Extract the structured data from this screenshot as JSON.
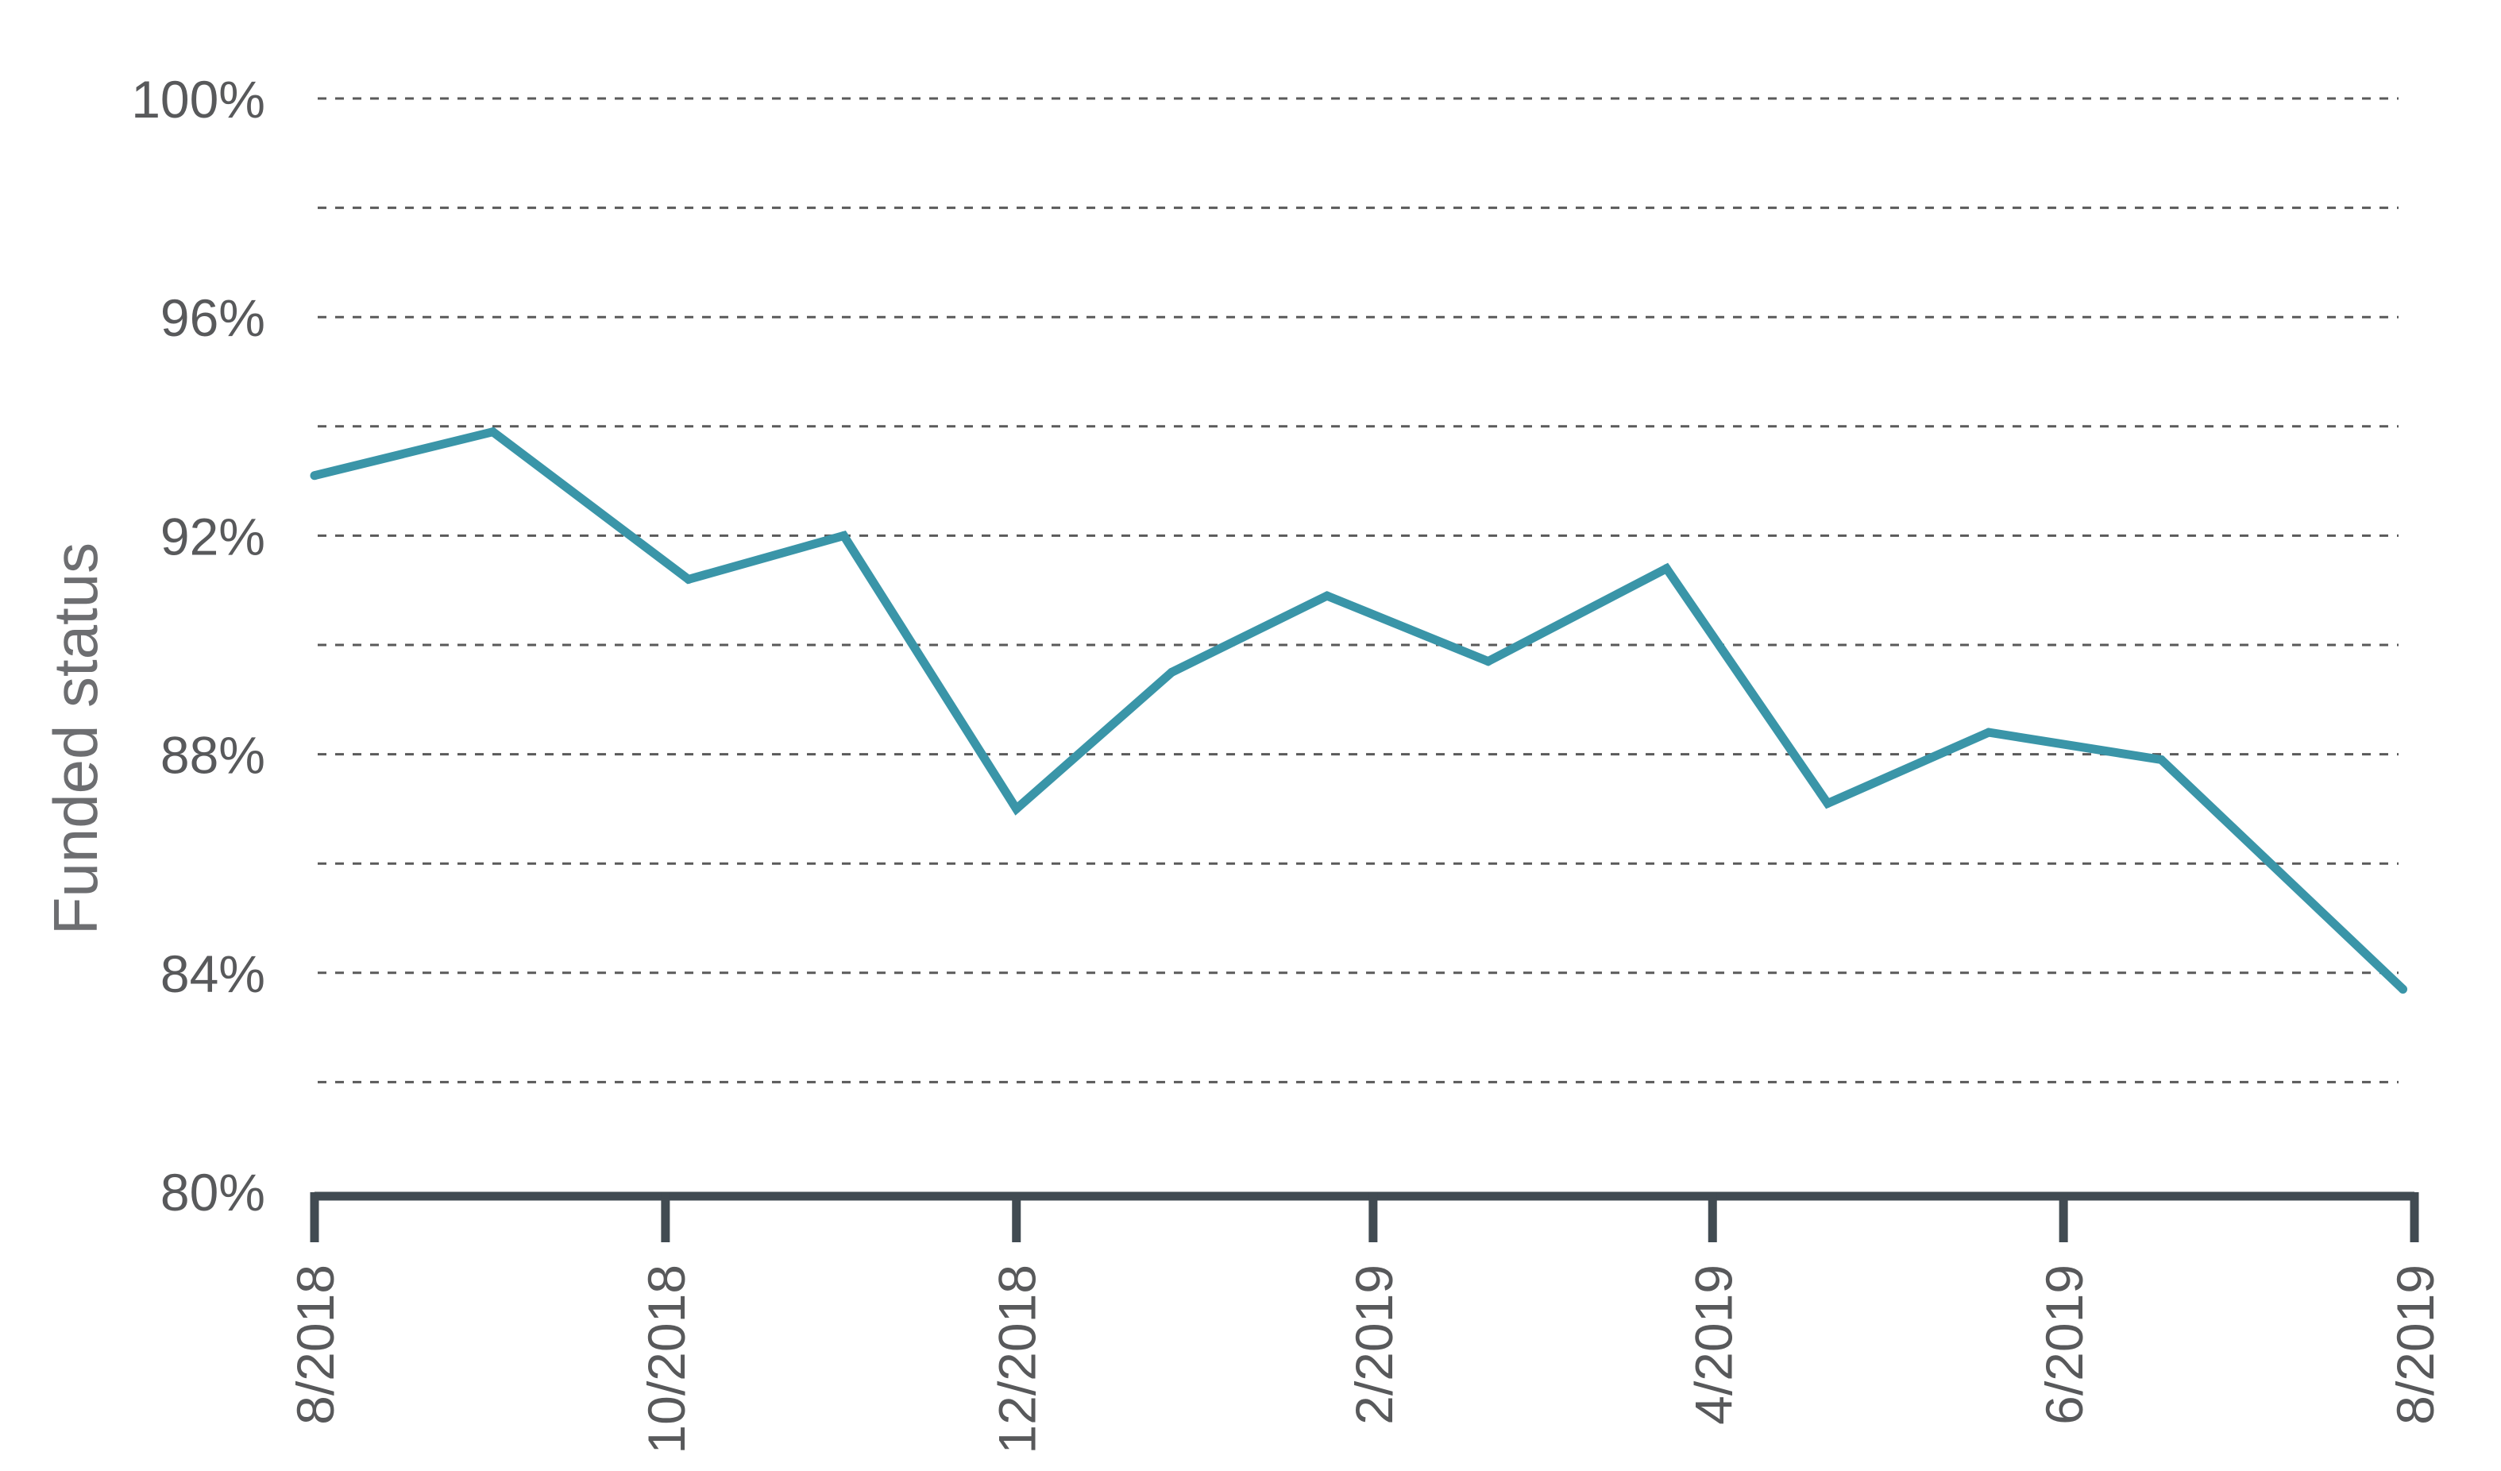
{
  "chart_data": {
    "type": "line",
    "title": "",
    "xlabel": "",
    "ylabel": "Funded status",
    "ylim": [
      80,
      100
    ],
    "y_ticks": [
      {
        "value": 100,
        "label": "100%"
      },
      {
        "value": 96,
        "label": "96%"
      },
      {
        "value": 92,
        "label": "92%"
      },
      {
        "value": 88,
        "label": "88%"
      },
      {
        "value": 84,
        "label": "84%"
      },
      {
        "value": 80,
        "label": "80%"
      }
    ],
    "gridline_values": [
      98,
      96,
      94,
      92,
      90,
      88,
      86,
      84,
      82,
      100
    ],
    "x_ticks": [
      {
        "date": "2018-08-01",
        "label": "8/2018"
      },
      {
        "date": "2018-10-01",
        "label": "10/2018"
      },
      {
        "date": "2018-12-01",
        "label": "12/2018"
      },
      {
        "date": "2019-02-01",
        "label": "2/2019"
      },
      {
        "date": "2019-04-01",
        "label": "4/2019"
      },
      {
        "date": "2019-06-01",
        "label": "6/2019"
      },
      {
        "date": "2019-08-01",
        "label": "8/2019"
      }
    ],
    "grid": true,
    "legend": "none",
    "colors": {
      "line": "#3a95a8",
      "axis": "#414b52",
      "grid": "#5a5a5a",
      "text": "#58595b"
    },
    "series": [
      {
        "values": [
          {
            "x": "2018-08-01",
            "y": 93.1
          },
          {
            "x": "2018-09-01",
            "y": 93.9
          },
          {
            "x": "2018-10-05",
            "y": 91.2
          },
          {
            "x": "2018-11-01",
            "y": 92.0
          },
          {
            "x": "2018-12-01",
            "y": 87.0
          },
          {
            "x": "2018-12-28",
            "y": 89.5
          },
          {
            "x": "2019-01-24",
            "y": 90.9
          },
          {
            "x": "2019-02-21",
            "y": 89.7
          },
          {
            "x": "2019-03-24",
            "y": 91.4
          },
          {
            "x": "2019-04-21",
            "y": 87.1
          },
          {
            "x": "2019-05-19",
            "y": 88.4
          },
          {
            "x": "2019-06-18",
            "y": 87.9
          },
          {
            "x": "2019-07-30",
            "y": 83.7
          }
        ]
      }
    ]
  }
}
